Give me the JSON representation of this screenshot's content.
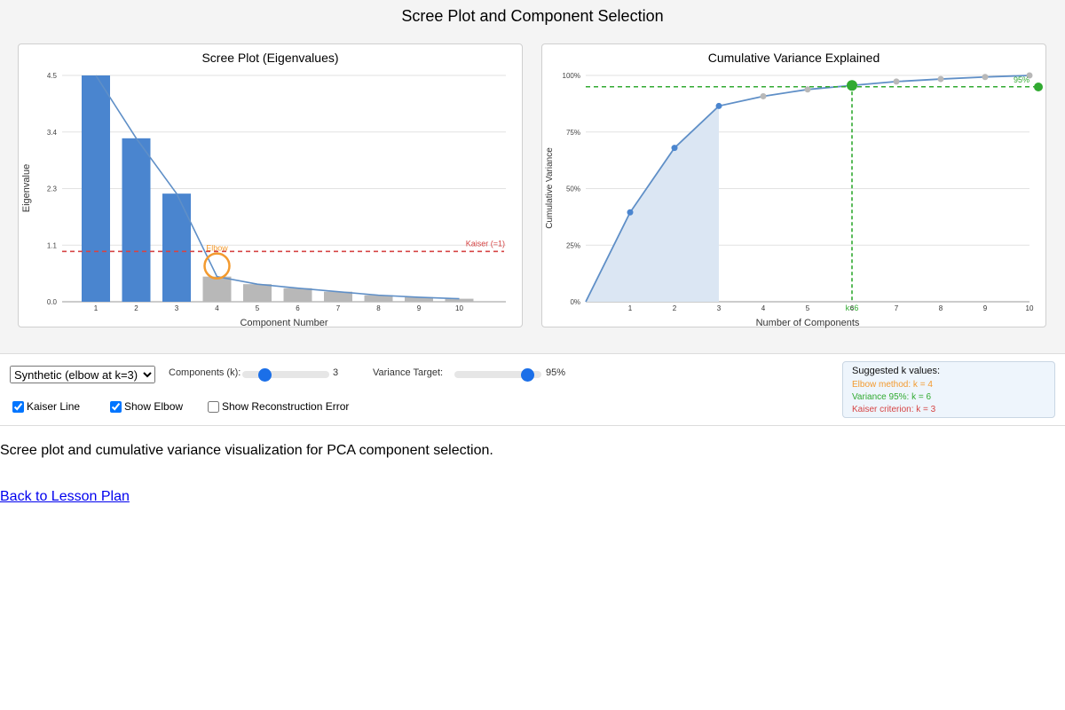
{
  "page": {
    "title": "Scree Plot and Component Selection",
    "description": "Scree plot and cumulative variance visualization for PCA component selection.",
    "back_link": "Back to Lesson Plan"
  },
  "colors": {
    "selected_bar": "#4a85cf",
    "unselected_bar": "#b8b8b8",
    "line": "#5f8fc7",
    "kaiser": "#d64545",
    "elbow": "#f39a2f",
    "target": "#31aa31",
    "fill": "#dbe6f3"
  },
  "chart_data": [
    {
      "type": "bar",
      "title": "Scree Plot (Eigenvalues)",
      "xlabel": "Component Number",
      "ylabel": "Eigenvalue",
      "categories": [
        "1",
        "2",
        "3",
        "4",
        "5",
        "6",
        "7",
        "8",
        "9",
        "10"
      ],
      "values": [
        4.5,
        3.25,
        2.15,
        0.5,
        0.35,
        0.27,
        0.2,
        0.13,
        0.09,
        0.06
      ],
      "ylim": [
        0,
        4.5
      ],
      "yticks": [
        "0.0",
        "1.1",
        "2.3",
        "3.4",
        "4.5"
      ],
      "selected_k": 3,
      "kaiser_threshold": 1,
      "kaiser_label": "Kaiser (=1)",
      "elbow_component": 4,
      "elbow_label": "Elbow",
      "grid": true
    },
    {
      "type": "line",
      "title": "Cumulative Variance Explained",
      "xlabel": "Number of Components",
      "ylabel": "Cumulative Variance",
      "x": [
        0,
        1,
        2,
        3,
        4,
        5,
        6,
        7,
        8,
        9,
        10
      ],
      "values": [
        0,
        39.5,
        68,
        86.5,
        90.8,
        93.8,
        95.6,
        97.3,
        98.4,
        99.3,
        100
      ],
      "xticks": [
        "1",
        "2",
        "3",
        "4",
        "5",
        "6",
        "7",
        "8",
        "9",
        "10"
      ],
      "yticks": [
        "0%",
        "25%",
        "50%",
        "75%",
        "100%"
      ],
      "ylim": [
        0,
        100
      ],
      "selected_k": 3,
      "target_percent": 95,
      "target_label": "95%",
      "target_k": 6,
      "target_k_label": "k=6",
      "grid": true
    }
  ],
  "controls": {
    "dataset_options": [
      "Synthetic (elbow at k=3)"
    ],
    "dataset_selected": "Synthetic (elbow at k=3)",
    "k_label": "Components (k):",
    "k_value": "3",
    "k_min": 1,
    "k_max": 10,
    "k_slider_value": 3,
    "variance_label": "Variance Target:",
    "variance_value": "95%",
    "variance_min": 50,
    "variance_max": 100,
    "variance_slider_value": 95,
    "kaiser_checkbox_label": "Kaiser Line",
    "kaiser_checked": true,
    "elbow_checkbox_label": "Show Elbow",
    "elbow_checked": true,
    "recon_checkbox_label": "Show Reconstruction Error",
    "recon_checked": false
  },
  "suggestions": {
    "title": "Suggested k values:",
    "elbow": "Elbow method: k = 4",
    "variance": "Variance 95%: k = 6",
    "kaiser": "Kaiser criterion: k = 3"
  }
}
